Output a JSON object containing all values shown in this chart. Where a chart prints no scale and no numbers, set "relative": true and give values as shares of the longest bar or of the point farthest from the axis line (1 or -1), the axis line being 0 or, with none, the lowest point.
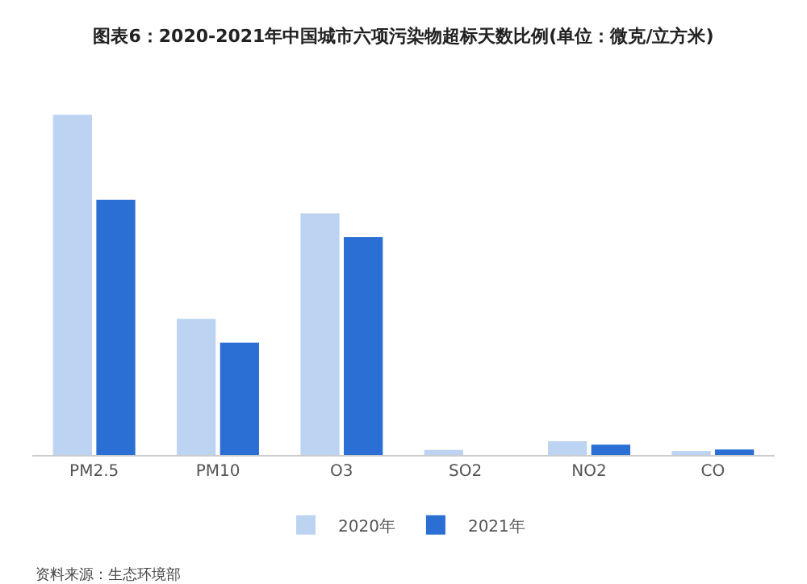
{
  "chart_data": {
    "type": "bar",
    "title": "图表6：2020-2021年中国城市六项污染物超标天数比例(单位：微克/立方米)",
    "categories": [
      "PM2.5",
      "PM10",
      "O3",
      "SO2",
      "NO2",
      "CO"
    ],
    "relative": true,
    "legend": "bottom",
    "series": [
      {
        "name": "2020年",
        "color": "#bcd4f2",
        "values": [
          1,
          0.4,
          0.71,
          0.015,
          0.04,
          0.012
        ]
      },
      {
        "name": "2021年",
        "color": "#2b6fd4",
        "values": [
          0.75,
          0.33,
          0.64,
          0,
          0.03,
          0.016
        ]
      }
    ],
    "annotations": [
      "资料来源：生态环境部"
    ]
  }
}
